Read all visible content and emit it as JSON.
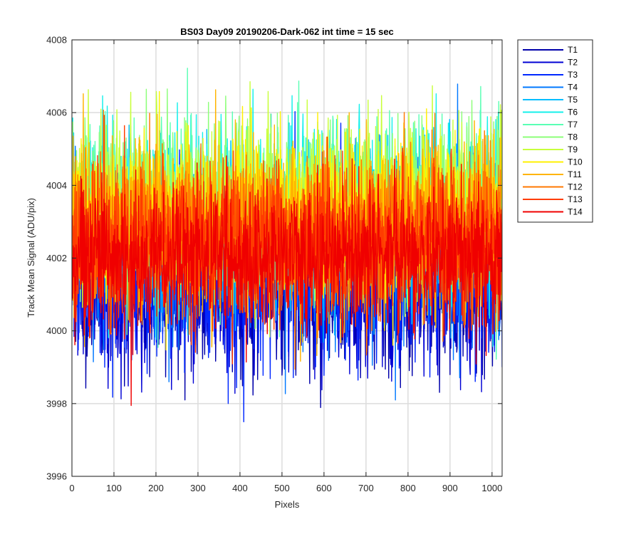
{
  "chart_data": {
    "type": "line",
    "title": "BS03 Day09 20190206-Dark-062 int time = 15 sec",
    "xlabel": "Pixels",
    "ylabel": "Track Mean Signal (ADU/pix)",
    "xlim": [
      0,
      1024
    ],
    "ylim": [
      3996,
      4008
    ],
    "xticks": [
      "0",
      "100",
      "200",
      "300",
      "400",
      "500",
      "600",
      "700",
      "800",
      "900",
      "1000"
    ],
    "xtick_values": [
      0,
      100,
      200,
      300,
      400,
      500,
      600,
      700,
      800,
      900,
      1000
    ],
    "yticks": [
      "3996",
      "3998",
      "4000",
      "4002",
      "4004",
      "4006",
      "4008"
    ],
    "ytick_values": [
      3996,
      3998,
      4000,
      4002,
      4004,
      4006,
      4008
    ],
    "grid": true,
    "legend_position": "outside-top-right",
    "points_per_series": 1024,
    "series": [
      {
        "name": "T1",
        "color": "#0000AA",
        "mean": 4001.2,
        "spread": 1.1,
        "seed": 11
      },
      {
        "name": "T2",
        "color": "#0000D4",
        "mean": 4001.4,
        "spread": 1.1,
        "seed": 22
      },
      {
        "name": "T3",
        "color": "#0028FF",
        "mean": 4001.7,
        "spread": 1.2,
        "seed": 33
      },
      {
        "name": "T4",
        "color": "#0078FF",
        "mean": 4002.2,
        "spread": 1.2,
        "seed": 44
      },
      {
        "name": "T5",
        "color": "#00BEFF",
        "mean": 4002.8,
        "spread": 1.1,
        "seed": 55
      },
      {
        "name": "T6",
        "color": "#14F0EB",
        "mean": 4003.3,
        "spread": 1.1,
        "seed": 66
      },
      {
        "name": "T7",
        "color": "#5AFFB4",
        "mean": 4003.4,
        "spread": 1.1,
        "seed": 77
      },
      {
        "name": "T8",
        "color": "#8CFF78",
        "mean": 4003.5,
        "spread": 1.1,
        "seed": 88
      },
      {
        "name": "T9",
        "color": "#C8FF3C",
        "mean": 4003.4,
        "spread": 1.1,
        "seed": 99
      },
      {
        "name": "T10",
        "color": "#FFF000",
        "mean": 4003.2,
        "spread": 1.1,
        "seed": 110
      },
      {
        "name": "T11",
        "color": "#FFB400",
        "mean": 4002.9,
        "spread": 1.1,
        "seed": 121
      },
      {
        "name": "T12",
        "color": "#FF7800",
        "mean": 4002.7,
        "spread": 1.1,
        "seed": 132
      },
      {
        "name": "T13",
        "color": "#FF3C00",
        "mean": 4002.4,
        "spread": 1.0,
        "seed": 143
      },
      {
        "name": "T14",
        "color": "#F00000",
        "mean": 4002.0,
        "spread": 1.0,
        "seed": 154
      }
    ]
  }
}
